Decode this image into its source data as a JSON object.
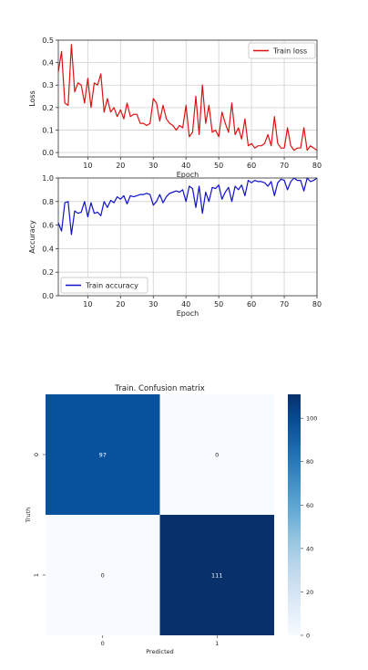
{
  "chart_data": [
    {
      "type": "line",
      "xlabel": "Epoch",
      "ylabel": "Loss",
      "xlim": [
        1,
        80
      ],
      "ylim": [
        -0.02,
        0.5
      ],
      "xticks": [
        10,
        20,
        30,
        40,
        50,
        60,
        70,
        80
      ],
      "yticks": [
        0.0,
        0.1,
        0.2,
        0.3,
        0.4,
        0.5
      ],
      "ytick_labels": [
        "0.0",
        "0.1",
        "0.2",
        "0.3",
        "0.4",
        "0.5"
      ],
      "grid": true,
      "legend_position": "top-right",
      "series": [
        {
          "name": "Train loss",
          "color": "#dd1111",
          "x": [
            1,
            2,
            3,
            4,
            5,
            6,
            7,
            8,
            9,
            10,
            11,
            12,
            13,
            14,
            15,
            16,
            17,
            18,
            19,
            20,
            21,
            22,
            23,
            24,
            25,
            26,
            27,
            28,
            29,
            30,
            31,
            32,
            33,
            34,
            35,
            36,
            37,
            38,
            39,
            40,
            41,
            42,
            43,
            44,
            45,
            46,
            47,
            48,
            49,
            50,
            51,
            52,
            53,
            54,
            55,
            56,
            57,
            58,
            59,
            60,
            61,
            62,
            63,
            64,
            65,
            66,
            67,
            68,
            69,
            70,
            71,
            72,
            73,
            74,
            75,
            76,
            77,
            78,
            79,
            80
          ],
          "values": [
            0.36,
            0.45,
            0.22,
            0.21,
            0.48,
            0.27,
            0.31,
            0.3,
            0.22,
            0.33,
            0.2,
            0.31,
            0.3,
            0.35,
            0.18,
            0.24,
            0.18,
            0.2,
            0.16,
            0.19,
            0.15,
            0.22,
            0.16,
            0.17,
            0.17,
            0.13,
            0.13,
            0.12,
            0.13,
            0.24,
            0.22,
            0.14,
            0.21,
            0.15,
            0.13,
            0.12,
            0.1,
            0.12,
            0.11,
            0.21,
            0.07,
            0.09,
            0.25,
            0.08,
            0.3,
            0.13,
            0.21,
            0.09,
            0.1,
            0.07,
            0.18,
            0.13,
            0.09,
            0.22,
            0.08,
            0.11,
            0.06,
            0.15,
            0.03,
            0.04,
            0.02,
            0.03,
            0.03,
            0.04,
            0.08,
            0.03,
            0.16,
            0.04,
            0.02,
            0.02,
            0.11,
            0.03,
            0.01,
            0.02,
            0.02,
            0.11,
            0.01,
            0.03,
            0.02,
            0.01
          ]
        }
      ]
    },
    {
      "type": "line",
      "xlabel": "Epoch",
      "ylabel": "Accuracy",
      "xlim": [
        1,
        80
      ],
      "ylim": [
        0.0,
        1.0
      ],
      "xticks": [
        10,
        20,
        30,
        40,
        50,
        60,
        70,
        80
      ],
      "yticks": [
        0.0,
        0.2,
        0.4,
        0.6,
        0.8,
        1.0
      ],
      "ytick_labels": [
        "0.0",
        "0.2",
        "0.4",
        "0.6",
        "0.8",
        "1.0"
      ],
      "grid": true,
      "legend_position": "bottom-left",
      "series": [
        {
          "name": "Train accuracy",
          "color": "#1111cc",
          "x": [
            1,
            2,
            3,
            4,
            5,
            6,
            7,
            8,
            9,
            10,
            11,
            12,
            13,
            14,
            15,
            16,
            17,
            18,
            19,
            20,
            21,
            22,
            23,
            24,
            25,
            26,
            27,
            28,
            29,
            30,
            31,
            32,
            33,
            34,
            35,
            36,
            37,
            38,
            39,
            40,
            41,
            42,
            43,
            44,
            45,
            46,
            47,
            48,
            49,
            50,
            51,
            52,
            53,
            54,
            55,
            56,
            57,
            58,
            59,
            60,
            61,
            62,
            63,
            64,
            65,
            66,
            67,
            68,
            69,
            70,
            71,
            72,
            73,
            74,
            75,
            76,
            77,
            78,
            79,
            80
          ],
          "values": [
            0.62,
            0.55,
            0.79,
            0.8,
            0.52,
            0.72,
            0.7,
            0.71,
            0.8,
            0.67,
            0.79,
            0.7,
            0.71,
            0.68,
            0.8,
            0.75,
            0.81,
            0.79,
            0.84,
            0.82,
            0.85,
            0.78,
            0.85,
            0.84,
            0.85,
            0.86,
            0.86,
            0.87,
            0.86,
            0.77,
            0.8,
            0.86,
            0.79,
            0.84,
            0.87,
            0.88,
            0.89,
            0.88,
            0.9,
            0.8,
            0.93,
            0.91,
            0.75,
            0.93,
            0.7,
            0.88,
            0.8,
            0.92,
            0.91,
            0.94,
            0.82,
            0.88,
            0.92,
            0.8,
            0.93,
            0.9,
            0.94,
            0.85,
            0.98,
            0.96,
            0.98,
            0.97,
            0.97,
            0.96,
            0.93,
            0.97,
            0.85,
            0.96,
            0.99,
            0.98,
            0.9,
            0.97,
            1.0,
            0.98,
            0.98,
            0.89,
            1.0,
            0.97,
            0.98,
            1.0
          ]
        }
      ]
    },
    {
      "type": "heatmap",
      "title": "Train. Confusion matrix",
      "xlabel": "Predicted",
      "ylabel": "Truth",
      "x_categories": [
        "0",
        "1"
      ],
      "y_categories": [
        "0",
        "1"
      ],
      "values": [
        [
          97,
          0
        ],
        [
          0,
          111
        ]
      ],
      "colormap": "Blues",
      "colorbar_range": [
        0,
        111
      ],
      "colorbar_ticks": [
        0,
        20,
        40,
        60,
        80,
        100
      ]
    }
  ]
}
